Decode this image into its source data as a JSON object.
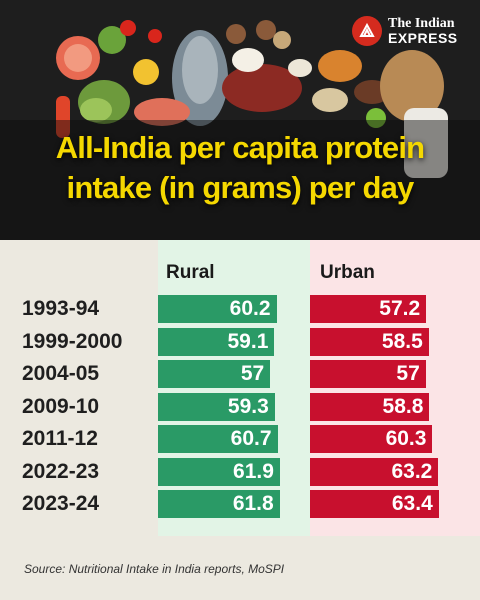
{
  "brand": {
    "line1": "The Indian",
    "line2": "EXPRESS",
    "logo_color": "#d52b1e"
  },
  "headline": {
    "line1": "All-India per capita protein",
    "line2": "intake (in grams) per day",
    "color": "#f5d800"
  },
  "chart_data": {
    "type": "bar",
    "title": "All-India per capita protein intake (in grams) per day",
    "categories": [
      "1993-94",
      "1999-2000",
      "2004-05",
      "2009-10",
      "2011-12",
      "2022-23",
      "2023-24"
    ],
    "series": [
      {
        "name": "Rural",
        "color": "#2a9a66",
        "values": [
          60.2,
          59.1,
          57,
          59.3,
          60.7,
          61.9,
          61.8
        ]
      },
      {
        "name": "Urban",
        "color": "#c8102e",
        "values": [
          57.2,
          58.5,
          57,
          58.8,
          60.3,
          63.2,
          63.4
        ]
      }
    ],
    "bar_scale": [
      0,
      65
    ],
    "labels_shown": [
      "60.2",
      "59.1",
      "57",
      "59.3",
      "60.7",
      "61.9",
      "61.8",
      "57.2",
      "58.5",
      "57",
      "58.8",
      "60.3",
      "63.2",
      "63.4"
    ]
  },
  "source": "Source: Nutritional Intake in India reports, MoSPI"
}
